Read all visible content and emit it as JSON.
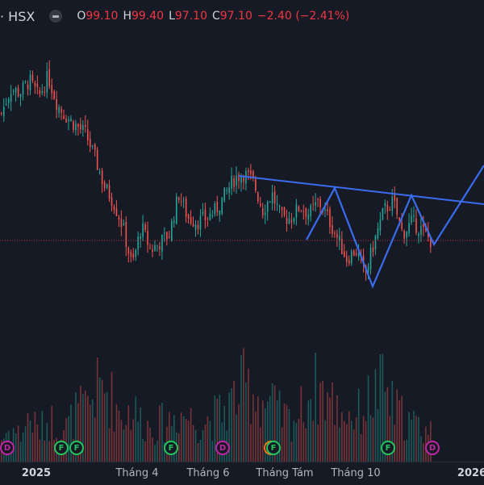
{
  "legend": {
    "symbol": "· HSX",
    "open_label": "O",
    "open": "99.10",
    "high_label": "H",
    "high": "99.40",
    "low_label": "L",
    "low": "97.10",
    "close_label": "C",
    "close": "97.10",
    "change": "−2.40 (−2.41%)"
  },
  "colors": {
    "up": "#26a69a",
    "down": "#ef5350",
    "drawing": "#3b6cf0",
    "last_price_line": "#f23645",
    "background": "#161a25"
  },
  "chart_data": {
    "type": "candlestick",
    "last_price": 97.1,
    "price_keypoints": [
      116.8,
      120.6,
      120.0,
      121.9,
      119.3,
      122.5,
      118.1,
      116.2,
      114.9,
      113.7,
      110.0,
      105.6,
      103.1,
      99.3,
      93.1,
      99.3,
      95.6,
      96.8,
      98.1,
      104.3,
      100.6,
      100.0,
      100.6,
      101.8,
      104.3,
      106.8,
      107.5,
      106.2,
      101.8,
      104.3,
      100.6,
      100.6,
      102.5,
      101.2,
      103.1,
      100.6,
      97.5,
      94.3,
      95.6,
      91.8,
      97.1,
      101.8,
      103.1,
      98.1,
      100.0,
      98.8,
      97.1
    ],
    "volume_keypoints": [
      30,
      45,
      35,
      60,
      40,
      55,
      50,
      45,
      65,
      70,
      90,
      100,
      80,
      60,
      70,
      55,
      45,
      50,
      55,
      65,
      60,
      50,
      55,
      60,
      70,
      85,
      100,
      95,
      80,
      75,
      60,
      55,
      65,
      90,
      100,
      85,
      70,
      65,
      60,
      75,
      90,
      100,
      70,
      60,
      50,
      45,
      40
    ],
    "x_labels": [
      "2025",
      "Tháng 4",
      "Tháng 6",
      "Tháng Tám",
      "Tháng 10",
      "2026"
    ],
    "events": [
      {
        "type": "D"
      },
      {
        "type": "F"
      },
      {
        "type": "F"
      },
      {
        "type": "F"
      },
      {
        "type": "D"
      },
      {
        "type": "F"
      },
      {
        "type": "F"
      },
      {
        "type": "D"
      }
    ]
  }
}
